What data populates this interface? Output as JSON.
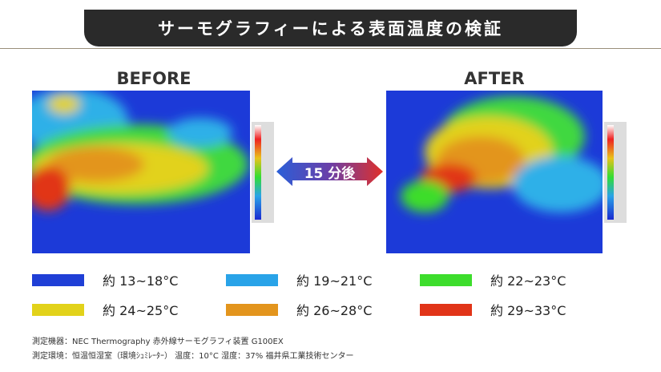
{
  "header": {
    "title": "サーモグラフィーによる表面温度の検証"
  },
  "panels": [
    {
      "label": "BEFORE"
    },
    {
      "label": "AFTER"
    }
  ],
  "arrow_label": "15 分後",
  "legend": [
    {
      "color": "#1f3fd6",
      "label": "約 13~18°C"
    },
    {
      "color": "#29a3e8",
      "label": "約 19~21°C"
    },
    {
      "color": "#3ddd2c",
      "label": "約 22~23°C"
    },
    {
      "color": "#e2d21a",
      "label": "約 24~25°C"
    },
    {
      "color": "#e3951d",
      "label": "約 26~28°C"
    },
    {
      "color": "#e13418",
      "label": "約 29~33°C"
    }
  ],
  "notes": [
    "測定機器：NEC Thermography 赤外線サーモグラフィ装置 G100EX",
    "測定環境：恒温恒湿室（環境ｼｭﾐﾚｰﾀｰ） 温度：10°C 湿度：37% 福井県工業技術センター"
  ]
}
